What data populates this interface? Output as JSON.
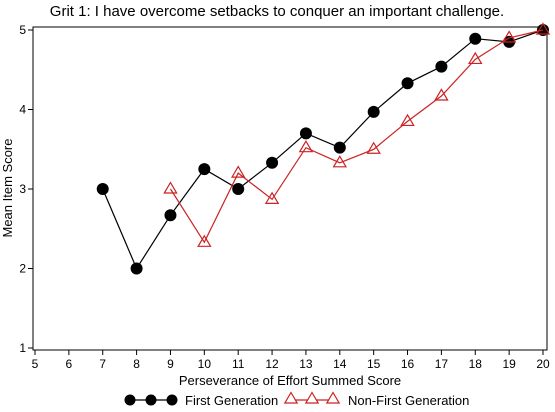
{
  "chart_data": {
    "type": "line",
    "title": "Grit 1: I have overcome setbacks to conquer an important challenge.",
    "xlabel": "Perseverance of Effort Summed Score",
    "ylabel": "Mean Item Score",
    "xlim": [
      5,
      20
    ],
    "ylim": [
      1,
      5
    ],
    "xticks": [
      5,
      6,
      7,
      8,
      9,
      10,
      11,
      12,
      13,
      14,
      15,
      16,
      17,
      18,
      19,
      20
    ],
    "yticks": [
      1,
      2,
      3,
      4,
      5
    ],
    "grid": false,
    "legend_position": "bottom",
    "series": [
      {
        "name": "First Generation",
        "color": "#000000",
        "marker": "filled-circle",
        "x": [
          7,
          8,
          9,
          10,
          11,
          12,
          13,
          14,
          15,
          16,
          17,
          18,
          19,
          20
        ],
        "y": [
          3.0,
          2.0,
          2.67,
          3.25,
          3.0,
          3.33,
          3.7,
          3.52,
          3.97,
          4.33,
          4.54,
          4.89,
          4.85,
          5.0
        ]
      },
      {
        "name": "Non-First Generation",
        "color": "#cc2222",
        "marker": "open-triangle",
        "x": [
          9,
          10,
          11,
          12,
          13,
          14,
          15,
          16,
          17,
          18,
          19,
          20
        ],
        "y": [
          3.0,
          2.33,
          3.2,
          2.87,
          3.52,
          3.33,
          3.5,
          3.85,
          4.17,
          4.63,
          4.9,
          5.0
        ]
      }
    ]
  }
}
